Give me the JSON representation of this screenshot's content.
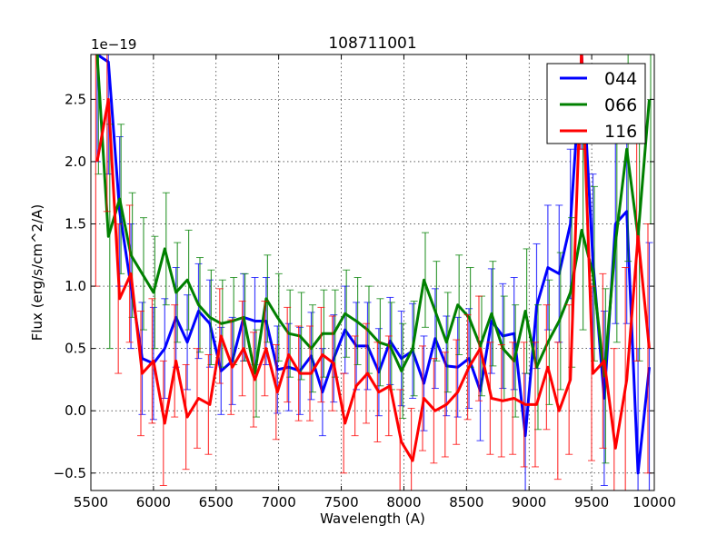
{
  "chart_data": {
    "type": "line",
    "title": "108711001",
    "xlabel": "Wavelength (A)",
    "ylabel": "Flux (erg/s/cm^2/A)",
    "y_offset_label": "1e−19",
    "xlim": [
      5500,
      10000
    ],
    "ylim": [
      -0.64,
      2.86
    ],
    "xticks": [
      5500,
      6000,
      6500,
      7000,
      7500,
      8000,
      8500,
      9000,
      9500,
      10000
    ],
    "xtick_labels": [
      "5500",
      "6000",
      "6500",
      "7000",
      "7500",
      "8000",
      "8500",
      "9000",
      "9500",
      "10000"
    ],
    "yticks": [
      -0.5,
      0.0,
      0.5,
      1.0,
      1.5,
      2.0,
      2.5
    ],
    "ytick_labels": [
      "−0.5",
      "0.0",
      "0.5",
      "1.0",
      "1.5",
      "2.0",
      "2.5"
    ],
    "grid": true,
    "legend_position": "top-right",
    "x": [
      5550,
      5640,
      5730,
      5820,
      5910,
      6000,
      6090,
      6180,
      6270,
      6360,
      6450,
      6540,
      6630,
      6720,
      6810,
      6900,
      6990,
      7080,
      7170,
      7260,
      7350,
      7440,
      7530,
      7620,
      7710,
      7800,
      7890,
      7980,
      8070,
      8160,
      8250,
      8340,
      8430,
      8520,
      8610,
      8700,
      8790,
      8880,
      8970,
      9060,
      9150,
      9240,
      9330,
      9420,
      9510,
      9600,
      9690,
      9780,
      9870,
      9960
    ],
    "series": [
      {
        "name": "044",
        "color": "#0000ff",
        "values": [
          3.0,
          2.8,
          1.6,
          1.0,
          0.42,
          0.38,
          0.5,
          0.75,
          0.55,
          0.8,
          0.7,
          0.32,
          0.4,
          0.75,
          0.72,
          0.72,
          0.33,
          0.35,
          0.32,
          0.44,
          0.15,
          0.42,
          0.65,
          0.52,
          0.52,
          0.31,
          0.56,
          0.42,
          0.48,
          0.22,
          0.58,
          0.36,
          0.35,
          0.42,
          0.16,
          0.72,
          0.6,
          0.62,
          -0.2,
          0.84,
          1.15,
          1.1,
          1.5,
          2.9,
          1.2,
          0.1,
          1.5,
          1.6,
          -0.5,
          0.35
        ],
        "yerr": [
          1.0,
          0.9,
          0.6,
          0.5,
          0.45,
          0.45,
          0.4,
          0.4,
          0.38,
          0.38,
          0.35,
          0.35,
          0.35,
          0.35,
          0.35,
          0.35,
          0.35,
          0.35,
          0.35,
          0.35,
          0.35,
          0.35,
          0.35,
          0.35,
          0.35,
          0.35,
          0.35,
          0.38,
          0.38,
          0.38,
          0.4,
          0.4,
          0.4,
          0.4,
          0.4,
          0.42,
          0.42,
          0.45,
          0.5,
          0.5,
          0.5,
          0.55,
          0.6,
          0.8,
          0.7,
          0.7,
          0.8,
          0.9,
          1.0,
          1.0
        ]
      },
      {
        "name": "066",
        "color": "#008000",
        "values": [
          2.9,
          1.4,
          1.7,
          1.25,
          1.1,
          0.95,
          1.3,
          0.95,
          1.05,
          0.85,
          0.75,
          0.7,
          0.72,
          0.75,
          0.3,
          0.9,
          0.75,
          0.62,
          0.6,
          0.5,
          0.62,
          0.62,
          0.78,
          0.72,
          0.65,
          0.55,
          0.52,
          0.32,
          0.5,
          1.05,
          0.8,
          0.55,
          0.85,
          0.75,
          0.52,
          0.78,
          0.5,
          0.4,
          0.8,
          0.35,
          0.55,
          0.72,
          0.95,
          1.45,
          1.1,
          0.28,
          1.35,
          2.1,
          1.4,
          2.5
        ],
        "yerr": [
          1.0,
          0.9,
          0.6,
          0.5,
          0.45,
          0.45,
          0.45,
          0.4,
          0.4,
          0.38,
          0.38,
          0.35,
          0.35,
          0.35,
          0.35,
          0.35,
          0.35,
          0.35,
          0.35,
          0.35,
          0.35,
          0.35,
          0.35,
          0.35,
          0.35,
          0.35,
          0.35,
          0.38,
          0.38,
          0.38,
          0.4,
          0.4,
          0.4,
          0.4,
          0.4,
          0.42,
          0.42,
          0.45,
          0.5,
          0.5,
          0.5,
          0.55,
          0.6,
          0.8,
          0.7,
          0.7,
          0.8,
          0.9,
          1.0,
          1.0
        ]
      },
      {
        "name": "116",
        "color": "#ff0000",
        "values": [
          2.0,
          2.5,
          0.9,
          1.1,
          0.3,
          0.4,
          -0.1,
          0.4,
          -0.05,
          0.1,
          0.05,
          0.6,
          0.35,
          0.5,
          0.25,
          0.5,
          0.15,
          0.45,
          0.3,
          0.3,
          0.45,
          0.38,
          -0.1,
          0.2,
          0.3,
          0.15,
          0.2,
          -0.25,
          -0.4,
          0.1,
          0.0,
          0.05,
          0.15,
          0.35,
          0.5,
          0.1,
          0.08,
          0.1,
          0.05,
          0.05,
          0.35,
          0.0,
          0.25,
          2.9,
          0.3,
          0.4,
          -0.3,
          0.25,
          1.4,
          0.5
        ],
        "yerr": [
          1.0,
          0.9,
          0.6,
          0.55,
          0.5,
          0.5,
          0.5,
          0.45,
          0.42,
          0.4,
          0.4,
          0.38,
          0.38,
          0.38,
          0.38,
          0.38,
          0.38,
          0.38,
          0.38,
          0.38,
          0.38,
          0.38,
          0.4,
          0.4,
          0.4,
          0.4,
          0.4,
          0.42,
          0.42,
          0.42,
          0.42,
          0.42,
          0.42,
          0.42,
          0.42,
          0.45,
          0.45,
          0.45,
          0.5,
          0.5,
          0.5,
          0.55,
          0.6,
          0.8,
          0.7,
          0.7,
          0.8,
          0.9,
          1.0,
          1.0
        ]
      }
    ]
  }
}
